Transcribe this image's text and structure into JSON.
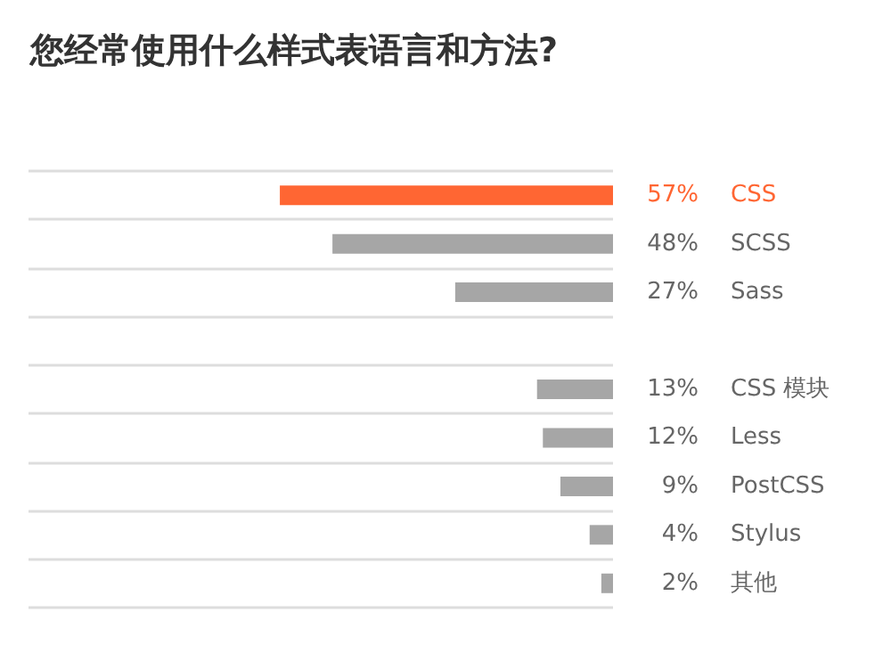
{
  "chart_data": {
    "type": "bar",
    "orientation": "horizontal",
    "title": "您经常使用什么样式表语言和方法?",
    "categories": [
      "CSS",
      "SCSS",
      "Sass",
      null,
      "CSS 模块",
      "Less",
      "PostCSS",
      "Stylus",
      "其他"
    ],
    "values": [
      57,
      48,
      27,
      null,
      13,
      12,
      9,
      4,
      2
    ],
    "value_labels": [
      "57%",
      "48%",
      "27%",
      null,
      "13%",
      "12%",
      "9%",
      "4%",
      "2%"
    ],
    "colors": [
      "#ff6633",
      "#a6a6a6",
      "#a6a6a6",
      "#a6a6a6",
      "#a6a6a6",
      "#a6a6a6",
      "#a6a6a6",
      "#a6a6a6",
      "#a6a6a6"
    ],
    "xlim": [
      100,
      0
    ],
    "grid": "y",
    "tick_labels": "y"
  }
}
